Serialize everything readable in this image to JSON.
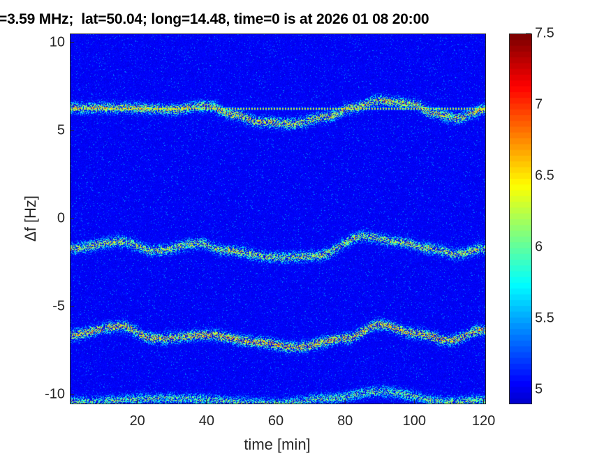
{
  "chart_data": {
    "type": "heatmap",
    "title": "=3.59 MHz;  lat=50.04; long=14.48, time=0 is at 2026 01 08 20:00",
    "xlabel": "time [min]",
    "ylabel": "Δf [Hz]",
    "xlim": [
      0.5,
      120.5
    ],
    "ylim": [
      -10.5,
      10.5
    ],
    "xticks": [
      20,
      40,
      60,
      80,
      100,
      120
    ],
    "yticks": [
      10,
      5,
      0,
      -5,
      -10
    ],
    "colormap": "jet",
    "clim": [
      4.9,
      7.5
    ],
    "colorbar_ticks": [
      7.5,
      7,
      6.5,
      6,
      5.5,
      5
    ],
    "background_level": 4.95,
    "ridges": [
      {
        "t": [
          0,
          15,
          30,
          40,
          48,
          55,
          65,
          75,
          82,
          90,
          100,
          105,
          112,
          120
        ],
        "f": [
          6.3,
          6.3,
          6.2,
          6.4,
          5.9,
          5.5,
          5.4,
          5.8,
          6.3,
          6.7,
          6.5,
          6.0,
          5.7,
          6.2
        ],
        "peak": 6.4
      },
      {
        "t": [
          0,
          120
        ],
        "f": [
          6.25,
          6.25
        ],
        "peak": 6.6
      },
      {
        "t": [
          0,
          15,
          25,
          38,
          45,
          60,
          72,
          85,
          95,
          105,
          112,
          120
        ],
        "f": [
          -1.7,
          -1.3,
          -1.8,
          -1.4,
          -1.8,
          -2.2,
          -2.1,
          -1.0,
          -1.3,
          -1.7,
          -2.0,
          -1.7
        ],
        "peak": 6.3
      },
      {
        "t": [
          0,
          15,
          25,
          40,
          55,
          65,
          80,
          90,
          100,
          110,
          120
        ],
        "f": [
          -6.6,
          -6.1,
          -6.8,
          -6.6,
          -7.0,
          -7.3,
          -6.8,
          -6.0,
          -6.5,
          -6.9,
          -6.3
        ],
        "peak": 6.5
      },
      {
        "t": [
          0,
          30,
          60,
          75,
          90,
          110,
          120
        ],
        "f": [
          -10.4,
          -10.2,
          -10.5,
          -10.2,
          -9.8,
          -10.4,
          -10.3
        ],
        "peak": 6.1
      }
    ]
  }
}
